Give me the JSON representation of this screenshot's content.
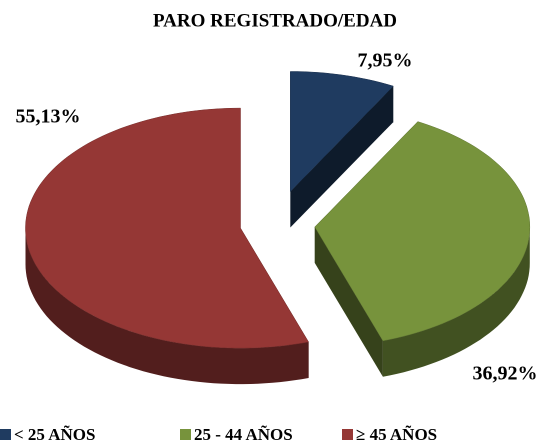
{
  "chart_data": {
    "type": "pie3d",
    "title": "PARO REGISTRADO/EDAD",
    "categories": [
      "< 25 AÑOS",
      "25 - 44 AÑOS",
      "≥ 45 AÑOS"
    ],
    "values": [
      7.95,
      36.92,
      55.13
    ],
    "value_labels": [
      "7,95%",
      "36,92%",
      "55,13%"
    ],
    "colors": [
      "#1f3b60",
      "#77933c",
      "#953735"
    ],
    "legend": "bottom"
  }
}
